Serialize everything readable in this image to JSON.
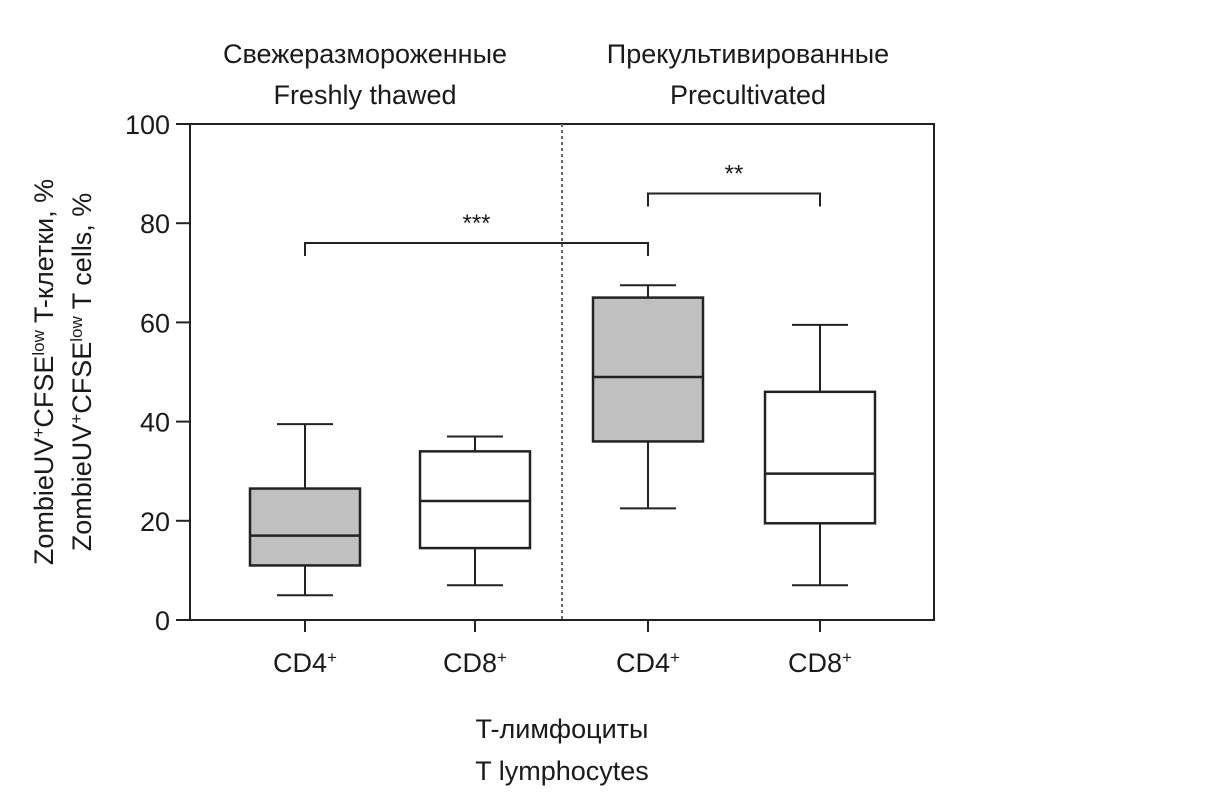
{
  "chart_data": {
    "type": "box",
    "group_titles": [
      {
        "ru": "Свежеразмороженные",
        "en": "Freshly thawed"
      },
      {
        "ru": "Прекультивированные",
        "en": "Precultivated"
      }
    ],
    "ylabel": {
      "ru_prefix": "ZombieUV",
      "ru_mid": "CFSE",
      "ru_suffix": " T-клетки, %",
      "en_prefix": "ZombieUV",
      "en_mid": "CFSE",
      "en_suffix": " T cells, %",
      "sup_plus": "+",
      "sup_low": "low"
    },
    "xlabel": {
      "ru": "T-лимфоциты",
      "en": "T lymphocytes"
    },
    "ylim": [
      0,
      100
    ],
    "yticks": [
      0,
      20,
      40,
      60,
      80,
      100
    ],
    "boxes": [
      {
        "label": "CD4",
        "sup": "+",
        "group": 0,
        "min": 5,
        "q1": 11,
        "median": 17,
        "q3": 26.5,
        "max": 39.5,
        "fill": "#c0c0c0"
      },
      {
        "label": "CD8",
        "sup": "+",
        "group": 0,
        "min": 7,
        "q1": 14.5,
        "median": 24,
        "q3": 34,
        "max": 37,
        "fill": "#ffffff"
      },
      {
        "label": "CD4",
        "sup": "+",
        "group": 1,
        "min": 22.5,
        "q1": 36,
        "median": 49,
        "q3": 65,
        "max": 67.5,
        "fill": "#c0c0c0"
      },
      {
        "label": "CD8",
        "sup": "+",
        "group": 1,
        "min": 7,
        "q1": 19.5,
        "median": 29.5,
        "q3": 46,
        "max": 59.5,
        "fill": "#ffffff"
      }
    ],
    "significance": [
      {
        "from": 0,
        "to": 2,
        "y": 76,
        "label": "***"
      },
      {
        "from": 2,
        "to": 3,
        "y": 86,
        "label": "**"
      }
    ]
  }
}
